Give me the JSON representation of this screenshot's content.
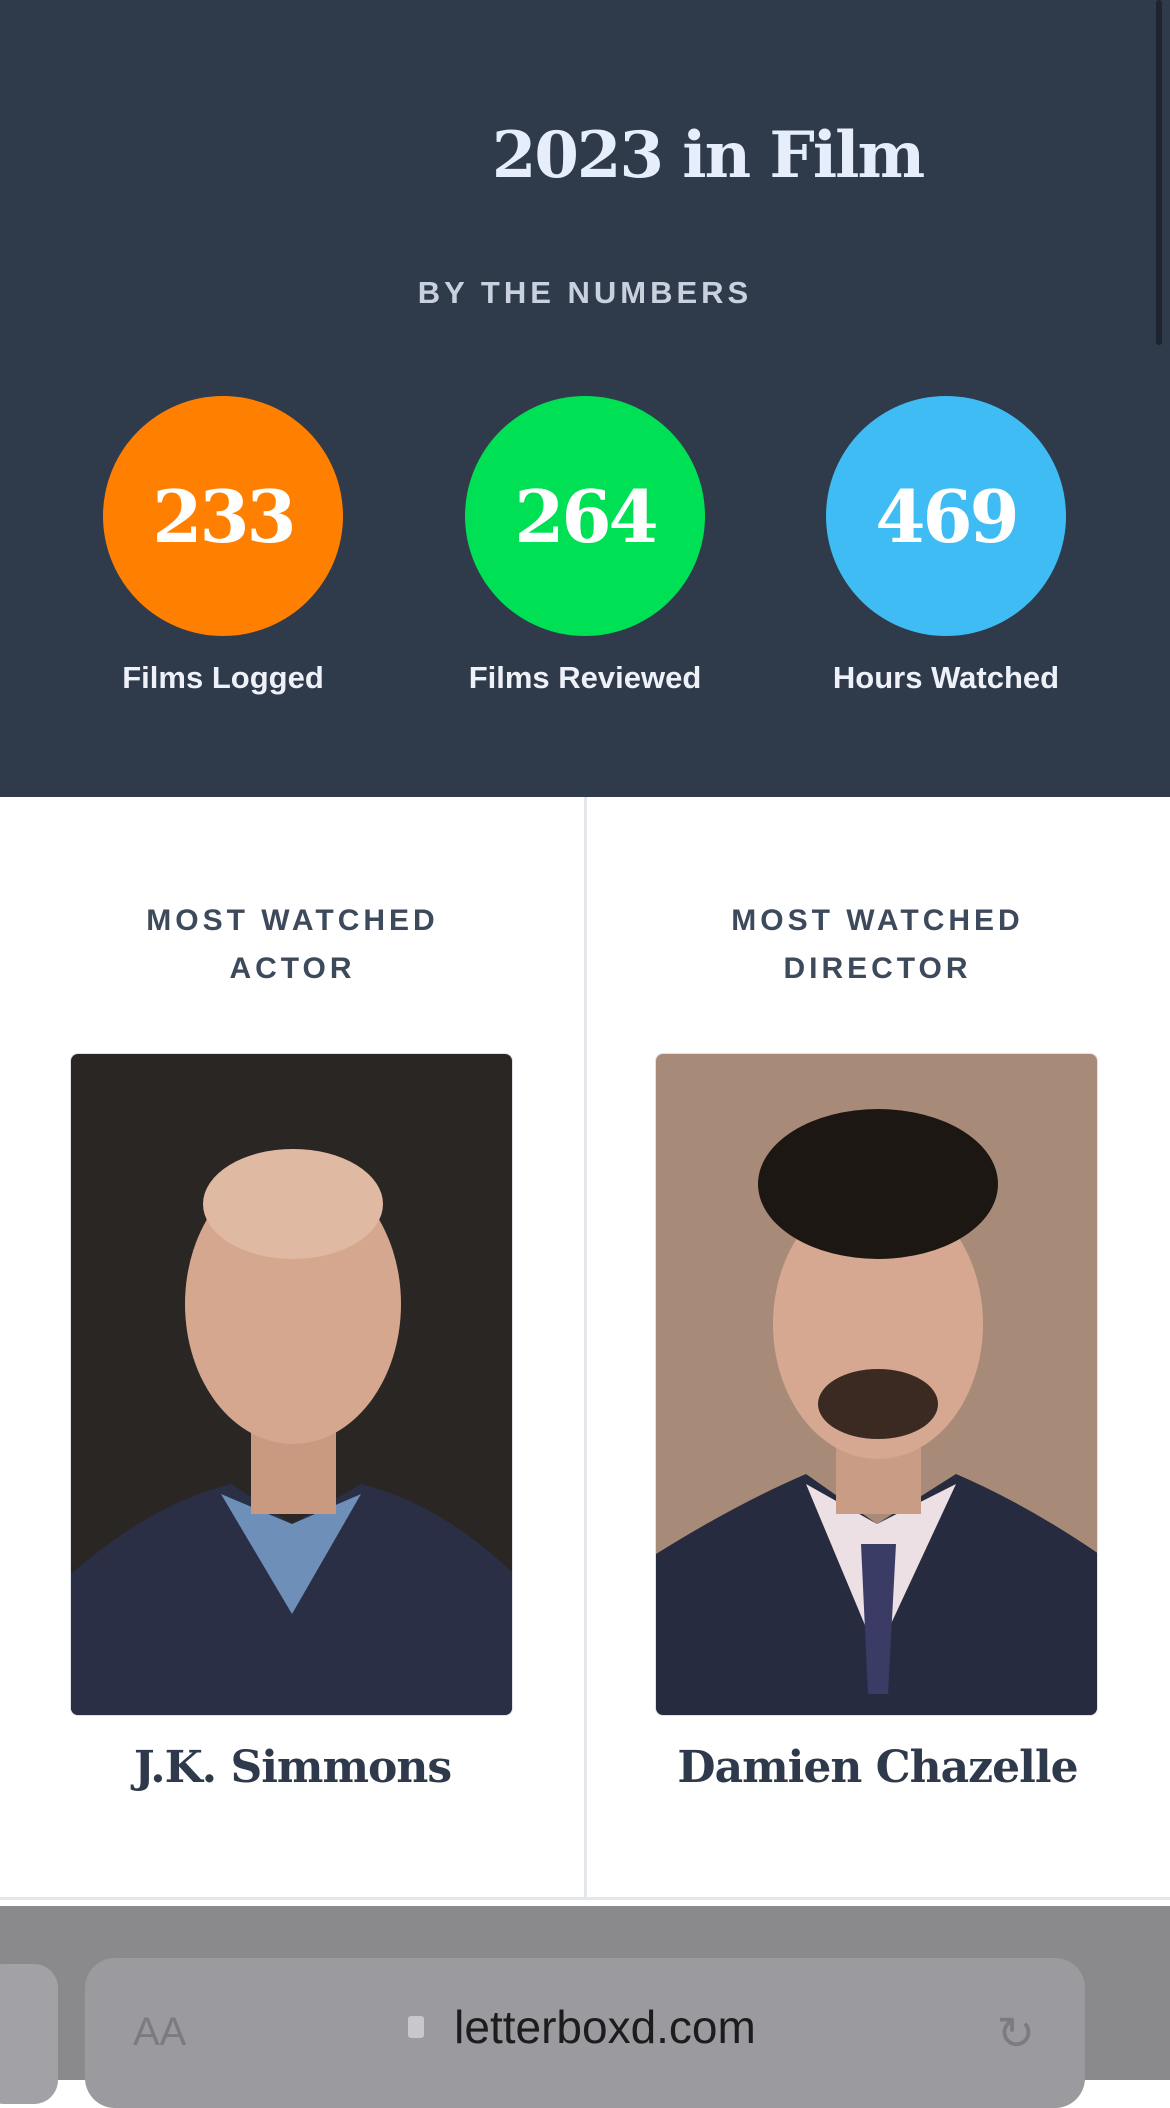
{
  "header": {
    "title": "2023 in Film",
    "subtitle": "BY THE NUMBERS"
  },
  "stats": [
    {
      "value": "233",
      "label": "Films Logged",
      "color": "#ff8000"
    },
    {
      "value": "264",
      "label": "Films Reviewed",
      "color": "#00e054"
    },
    {
      "value": "469",
      "label": "Hours Watched",
      "color": "#40bcf4"
    }
  ],
  "actor": {
    "heading_line1": "MOST WATCHED",
    "heading_line2": "ACTOR",
    "name": "J.K. Simmons"
  },
  "director": {
    "heading_line1": "MOST WATCHED",
    "heading_line2": "DIRECTOR",
    "name": "Damien Chazelle"
  },
  "browser": {
    "text_size_label": "AA",
    "url": "letterboxd.com",
    "lock_icon": "lock-icon",
    "reload_icon": "reload-icon"
  }
}
